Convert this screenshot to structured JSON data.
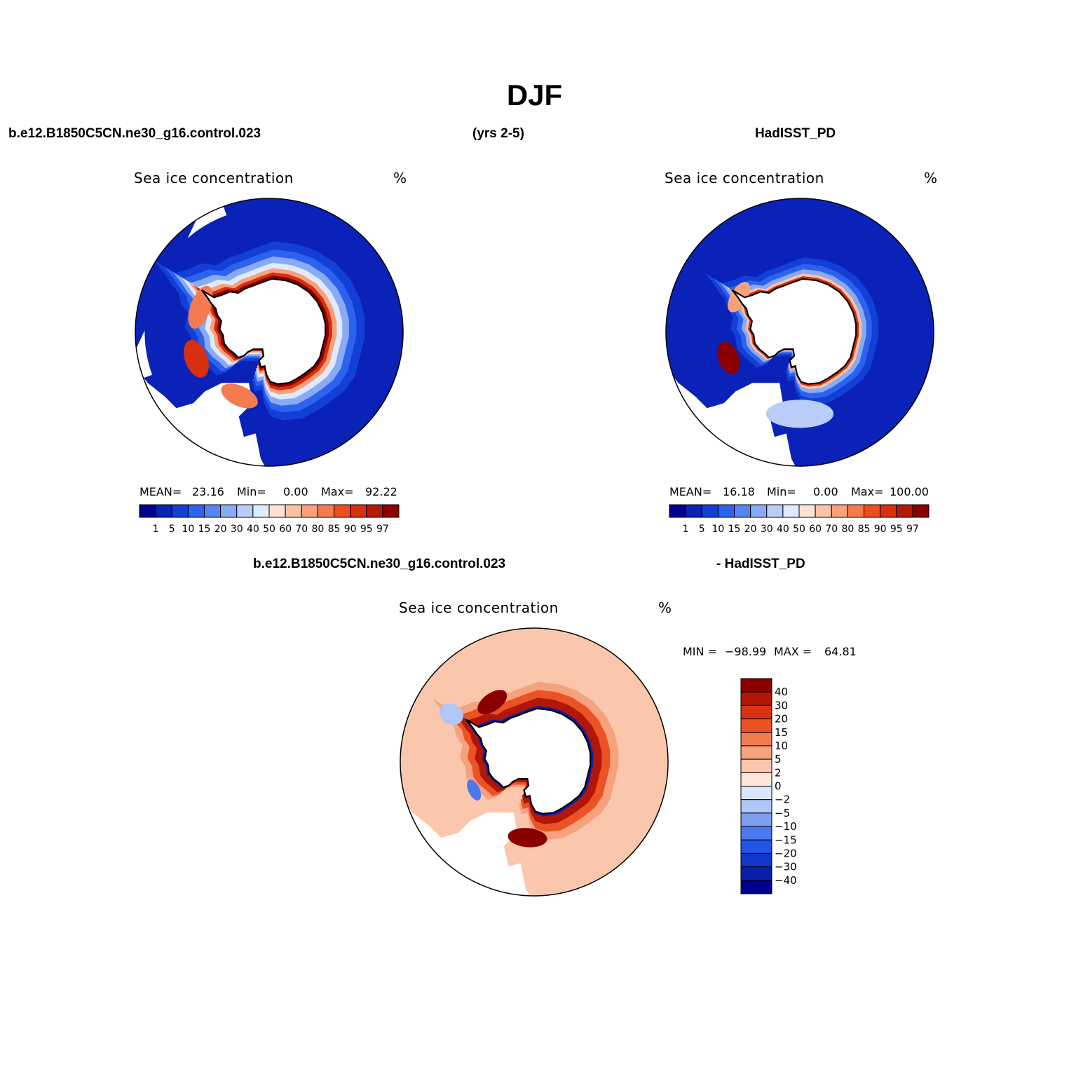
{
  "header": {
    "season": "DJF",
    "case_name": "b.e12.B1850C5CN.ne30_g16.control.023",
    "years": "(yrs 2-5)",
    "obs_name": "HadISST_PD",
    "diff_case_name": "b.e12.B1850C5CN.ne30_g16.control.023",
    "diff_obs_name": "- HadISST_PD"
  },
  "colors": {
    "abs_palette": [
      "#00008f",
      "#0b22b8",
      "#1240d6",
      "#2d62ee",
      "#5586f2",
      "#89aaf5",
      "#b9cdf8",
      "#dfeafc",
      "#fde3d3",
      "#fbc3a5",
      "#f8a17c",
      "#f47b50",
      "#ee4d22",
      "#d6300e",
      "#b01a06",
      "#8a0000"
    ],
    "diff_palette": [
      "#00008f",
      "#0b1fa8",
      "#1038c8",
      "#2055e6",
      "#4a78ee",
      "#7e9ef3",
      "#b2c6f7",
      "#d9e6fb",
      "#fde6d8",
      "#fac7ad",
      "#f6a27e",
      "#f27a4f",
      "#eb5224",
      "#d63410",
      "#b21606",
      "#8a0000"
    ],
    "land": "#ffffff",
    "outline": "#000000"
  },
  "chart_data": [
    {
      "type": "heatmap",
      "projection": "south-polar-stereographic",
      "title": "Sea ice concentration",
      "units": "%",
      "stats": {
        "mean_label": "MEAN=",
        "mean": "23.16",
        "min_label": "Min=",
        "min": "0.00",
        "max_label": "Max=",
        "max": "92.22"
      },
      "colorbar": {
        "orientation": "horizontal",
        "levels": [
          "1",
          "5",
          "10",
          "15",
          "20",
          "30",
          "40",
          "50",
          "60",
          "70",
          "80",
          "85",
          "90",
          "95",
          "97"
        ]
      },
      "rings": [
        {
          "level": 97,
          "inner": 1.02,
          "outer": 1.06
        },
        {
          "level": 90,
          "inner": 1.06,
          "outer": 1.12
        },
        {
          "level": 70,
          "inner": 1.12,
          "outer": 1.2
        },
        {
          "level": 40,
          "inner": 1.2,
          "outer": 1.3
        },
        {
          "level": 20,
          "inner": 1.3,
          "outer": 1.42
        },
        {
          "level": 10,
          "inner": 1.42,
          "outer": 1.55
        },
        {
          "level": 5,
          "inner": 1.55,
          "outer": 1.7
        },
        {
          "level": 1,
          "inner": 1.7,
          "outer": 3.0
        }
      ],
      "patches": [
        {
          "level": 90,
          "angle": 200,
          "dist": 1.38,
          "rx": 0.35,
          "ry": 0.2
        },
        {
          "level": 80,
          "angle": 160,
          "dist": 1.3,
          "rx": 0.4,
          "ry": 0.18
        },
        {
          "level": 80,
          "angle": 245,
          "dist": 1.25,
          "rx": 0.35,
          "ry": 0.18
        }
      ],
      "ice_free_sector": {
        "from": 110,
        "to": 200
      }
    },
    {
      "type": "heatmap",
      "projection": "south-polar-stereographic",
      "title": "Sea ice concentration",
      "units": "%",
      "stats": {
        "mean_label": "MEAN=",
        "mean": "16.18",
        "min_label": "Min=",
        "min": "0.00",
        "max_label": "Max=",
        "max": "100.00"
      },
      "colorbar": {
        "orientation": "horizontal",
        "levels": [
          "1",
          "5",
          "10",
          "15",
          "20",
          "30",
          "40",
          "50",
          "60",
          "70",
          "80",
          "85",
          "90",
          "95",
          "97"
        ]
      },
      "rings": [
        {
          "level": 90,
          "inner": 1.02,
          "outer": 1.05
        },
        {
          "level": 60,
          "inner": 1.05,
          "outer": 1.1
        },
        {
          "level": 20,
          "inner": 1.1,
          "outer": 1.18
        },
        {
          "level": 10,
          "inner": 1.18,
          "outer": 1.28
        },
        {
          "level": 5,
          "inner": 1.28,
          "outer": 1.4
        },
        {
          "level": 1,
          "inner": 1.4,
          "outer": 3.0
        }
      ],
      "patches": [
        {
          "level": 97,
          "angle": 200,
          "dist": 1.35,
          "rx": 0.3,
          "ry": 0.18
        },
        {
          "level": 70,
          "angle": 150,
          "dist": 1.25,
          "rx": 0.3,
          "ry": 0.15
        },
        {
          "level": 30,
          "angle": 270,
          "dist": 1.45,
          "rx": 0.6,
          "ry": 0.25
        }
      ],
      "ice_free_sector": null
    },
    {
      "type": "heatmap",
      "projection": "south-polar-stereographic",
      "title": "Sea ice concentration",
      "units": "%",
      "stats": {
        "min_label": "MIN =",
        "min": "−98.99",
        "max_label": "MAX =",
        "max": "64.81"
      },
      "colorbar": {
        "orientation": "vertical",
        "levels": [
          "40",
          "30",
          "20",
          "15",
          "10",
          "5",
          "2",
          "0",
          "−2",
          "−5",
          "−10",
          "−15",
          "−20",
          "−30",
          "−40"
        ]
      },
      "rings": [
        {
          "level": -40,
          "inner": 1.02,
          "outer": 1.05
        },
        {
          "level": 30,
          "inner": 1.05,
          "outer": 1.2
        },
        {
          "level": 15,
          "inner": 1.2,
          "outer": 1.35
        },
        {
          "level": 5,
          "inner": 1.35,
          "outer": 1.5
        },
        {
          "level": 2,
          "inner": 1.5,
          "outer": 3.0
        }
      ],
      "patches": [
        {
          "level": 40,
          "angle": 265,
          "dist": 1.35,
          "rx": 0.35,
          "ry": 0.17
        },
        {
          "level": 40,
          "angle": 125,
          "dist": 1.3,
          "rx": 0.3,
          "ry": 0.16
        },
        {
          "level": -15,
          "angle": 205,
          "dist": 1.18,
          "rx": 0.2,
          "ry": 0.1
        },
        {
          "level": -5,
          "angle": 150,
          "dist": 1.7,
          "rx": 0.18,
          "ry": 0.22
        }
      ],
      "ice_free_sector": null
    }
  ]
}
